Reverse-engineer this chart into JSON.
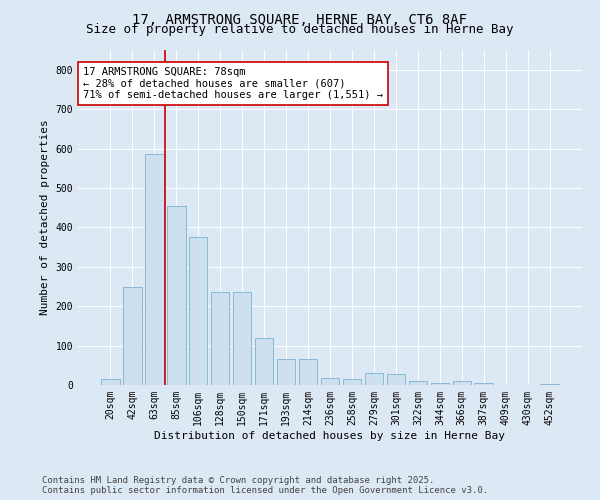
{
  "title_line1": "17, ARMSTRONG SQUARE, HERNE BAY, CT6 8AF",
  "title_line2": "Size of property relative to detached houses in Herne Bay",
  "xlabel": "Distribution of detached houses by size in Herne Bay",
  "ylabel": "Number of detached properties",
  "categories": [
    "20sqm",
    "42sqm",
    "63sqm",
    "85sqm",
    "106sqm",
    "128sqm",
    "150sqm",
    "171sqm",
    "193sqm",
    "214sqm",
    "236sqm",
    "258sqm",
    "279sqm",
    "301sqm",
    "322sqm",
    "344sqm",
    "366sqm",
    "387sqm",
    "409sqm",
    "430sqm",
    "452sqm"
  ],
  "values": [
    15,
    248,
    585,
    455,
    375,
    235,
    235,
    120,
    65,
    65,
    18,
    15,
    30,
    28,
    10,
    5,
    10,
    5,
    0,
    0,
    2
  ],
  "bar_color": "#cde0f0",
  "bar_edge_color": "#7ab3d4",
  "background_color": "#dde8f5",
  "vline_color": "#cc0000",
  "vline_x_index": 2.5,
  "annotation_text": "17 ARMSTRONG SQUARE: 78sqm\n← 28% of detached houses are smaller (607)\n71% of semi-detached houses are larger (1,551) →",
  "annotation_box_facecolor": "#ffffff",
  "annotation_box_edgecolor": "#cc0000",
  "ylim": [
    0,
    850
  ],
  "yticks": [
    0,
    100,
    200,
    300,
    400,
    500,
    600,
    700,
    800
  ],
  "footer_line1": "Contains HM Land Registry data © Crown copyright and database right 2025.",
  "footer_line2": "Contains public sector information licensed under the Open Government Licence v3.0.",
  "title_fontsize": 10,
  "subtitle_fontsize": 9,
  "axis_label_fontsize": 8,
  "tick_fontsize": 7,
  "annotation_fontsize": 7.5,
  "footer_fontsize": 6.5
}
